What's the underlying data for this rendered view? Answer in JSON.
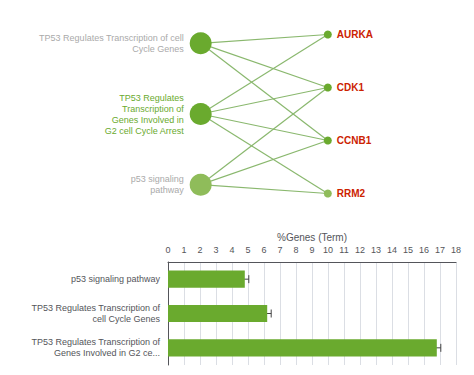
{
  "chart_data": [
    {
      "type": "network",
      "edge_color": "#8ab86e",
      "pathways": [
        {
          "label": "TP53 Regulates Transcription of cell\nCycle Genes",
          "color": "#6aaa2e",
          "label_color": "#aaaaaa",
          "genes": [
            "AURKA",
            "CDK1",
            "CCNB1"
          ]
        },
        {
          "label": "TP53 Regulates\nTranscription of\nGenes Involved in\nG2 cell Cycle Arrest",
          "color": "#6aaa2e",
          "label_color": "#6aaa2e",
          "genes": [
            "AURKA",
            "CDK1",
            "CCNB1",
            "RRM2"
          ]
        },
        {
          "label": "p53 signaling\npathway",
          "color": "#8fbc5a",
          "label_color": "#aaaaaa",
          "genes": [
            "CDK1",
            "CCNB1",
            "RRM2"
          ]
        }
      ],
      "genes": [
        {
          "label": "AURKA",
          "color": "#6aaa2e",
          "label_color": "#cc2200"
        },
        {
          "label": "CDK1",
          "color": "#6aaa2e",
          "label_color": "#cc2200"
        },
        {
          "label": "CCNB1",
          "color": "#6aaa2e",
          "label_color": "#cc2200"
        },
        {
          "label": "RRM2",
          "color": "#8fbc5a",
          "label_color": "#cc2200"
        }
      ]
    },
    {
      "type": "bar",
      "orientation": "horizontal",
      "categories": [
        "p53 signaling pathway",
        "TP53 Regulates Transcription of\ncell Cycle Genes",
        "TP53 Regulates Transcription of\nGenes Involved in G2 ce..."
      ],
      "values": [
        4.8,
        6.2,
        16.8
      ],
      "error": [
        0.25,
        0.25,
        0.25
      ],
      "color": "#6aaa2e",
      "xlabel": "%Genes (Term)",
      "xlim": [
        0,
        18
      ],
      "xticks": [
        0,
        1,
        2,
        3,
        4,
        5,
        6,
        7,
        8,
        9,
        10,
        11,
        12,
        13,
        14,
        15,
        16,
        17,
        18
      ],
      "grid": true
    }
  ]
}
